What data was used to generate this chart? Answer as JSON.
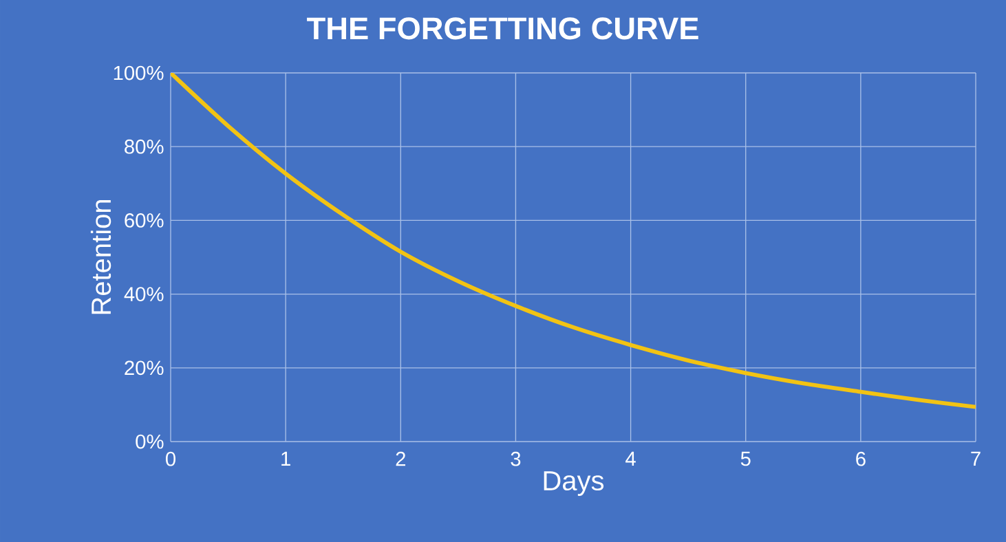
{
  "chart_data": {
    "type": "line",
    "title": "THE FORGETTING CURVE",
    "xlabel": "Days",
    "ylabel": "Retention",
    "x": [
      0,
      0.5,
      1,
      1.5,
      2,
      2.5,
      3,
      3.5,
      4,
      4.5,
      5,
      5.5,
      6,
      6.5,
      7
    ],
    "series": [
      {
        "color": "#f2c314",
        "values": [
          100,
          85.6,
          72.7,
          61.5,
          51.5,
          43.5,
          36.8,
          31,
          26.2,
          22,
          18.6,
          15.8,
          13.5,
          11.3,
          9.4
        ]
      }
    ],
    "xlim": [
      0,
      7
    ],
    "xticks": [
      0,
      1,
      2,
      3,
      4,
      5,
      6,
      7
    ],
    "ylim": [
      0,
      100
    ],
    "yticks": [
      {
        "value": 0,
        "label": "0%"
      },
      {
        "value": 20,
        "label": "20%"
      },
      {
        "value": 40,
        "label": "40%"
      },
      {
        "value": 60,
        "label": "60%"
      },
      {
        "value": 80,
        "label": "80%"
      },
      {
        "value": 100,
        "label": "100%"
      }
    ],
    "grid": true,
    "marker": "none",
    "line_style": "solid"
  }
}
